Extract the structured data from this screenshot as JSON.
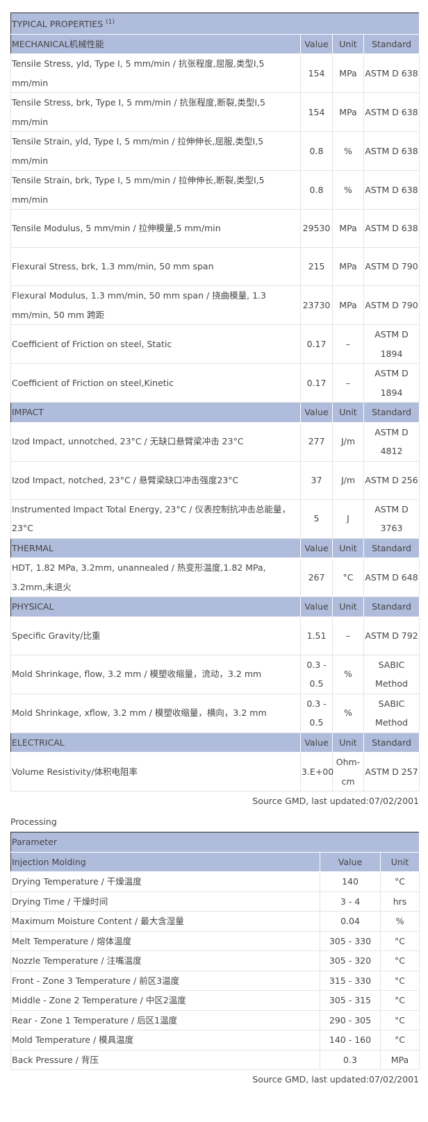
{
  "properties": {
    "title": "TYPICAL PROPERTIES",
    "title_note": "(1)",
    "col_value": "Value",
    "col_unit": "Unit",
    "col_standard": "Standard",
    "sections": [
      {
        "name": "MECHANICAL机械性能",
        "rows": [
          {
            "p": "Tensile Stress, yld, Type I, 5 mm/min / 抗张程度,屈服,类型I,5 mm/min",
            "v": "154",
            "u": "MPa",
            "s": "ASTM D 638"
          },
          {
            "p": "Tensile Stress, brk, Type I, 5 mm/min / 抗张程度,断裂,类型I,5 mm/min",
            "v": "154",
            "u": "MPa",
            "s": "ASTM D 638"
          },
          {
            "p": "Tensile Strain, yld, Type I, 5 mm/min / 拉伸伸长,屈服,类型I,5 mm/min",
            "v": "0.8",
            "u": "%",
            "s": "ASTM D 638"
          },
          {
            "p": "Tensile Strain, brk, Type I, 5 mm/min / 拉伸伸长,断裂,类型I,5 mm/min",
            "v": "0.8",
            "u": "%",
            "s": "ASTM D 638"
          },
          {
            "p": "Tensile Modulus, 5 mm/min / 拉伸模量,5 mm/min",
            "v": "29530",
            "u": "MPa",
            "s": "ASTM D 638"
          },
          {
            "p": "Flexural Stress, brk, 1.3 mm/min, 50 mm span",
            "v": "215",
            "u": "MPa",
            "s": "ASTM D 790"
          },
          {
            "p": "Flexural Modulus, 1.3 mm/min, 50 mm span / 挠曲模量, 1.3 mm/min, 50 mm 跨距",
            "v": "23730",
            "u": "MPa",
            "s": "ASTM D 790"
          },
          {
            "p": "Coefficient of Friction on steel, Static",
            "v": "0.17",
            "u": "–",
            "s": "ASTM D 1894"
          },
          {
            "p": "Coefficient of Friction on steel,Kinetic",
            "v": "0.17",
            "u": "–",
            "s": "ASTM D 1894"
          }
        ]
      },
      {
        "name": "IMPACT",
        "rows": [
          {
            "p": "Izod Impact, unnotched, 23°C / 无缺口悬臂梁冲击 23°C",
            "v": "277",
            "u": "J/m",
            "s": "ASTM D 4812"
          },
          {
            "p": "Izod Impact, notched, 23°C / 悬臂梁缺口冲击强度23°C",
            "v": "37",
            "u": "J/m",
            "s": "ASTM D 256"
          },
          {
            "p": "Instrumented Impact Total Energy, 23°C / 仪表控制抗冲击总能量，23°C",
            "v": "5",
            "u": "J",
            "s": "ASTM D 3763"
          }
        ]
      },
      {
        "name": "THERMAL",
        "rows": [
          {
            "p": "HDT, 1.82 MPa, 3.2mm, unannealed / 热变形温度,1.82 MPa, 3.2mm,未退火",
            "v": "267",
            "u": "°C",
            "s": "ASTM D 648"
          }
        ]
      },
      {
        "name": "PHYSICAL",
        "rows": [
          {
            "p": "Specific Gravity/比重",
            "v": "1.51",
            "u": "–",
            "s": "ASTM D 792"
          },
          {
            "p": "Mold Shrinkage, flow, 3.2 mm / 模塑收缩量，流动，3.2 mm",
            "v": "0.3 - 0.5",
            "u": "%",
            "s": "SABIC Method"
          },
          {
            "p": "Mold Shrinkage, xflow, 3.2 mm / 模塑收缩量，横向，3.2 mm",
            "v": "0.3 - 0.5",
            "u": "%",
            "s": "SABIC Method"
          }
        ]
      },
      {
        "name": "ELECTRICAL",
        "rows": [
          {
            "p": "Volume Resistivity/体积电阻率",
            "v": "3.E+00",
            "u": "Ohm-cm",
            "s": "ASTM D 257"
          }
        ]
      }
    ],
    "source": "Source GMD, last updated:07/02/2001"
  },
  "processing": {
    "label": "Processing",
    "title": "Parameter",
    "section": "Injection Molding",
    "col_value": "Value",
    "col_unit": "Unit",
    "rows": [
      {
        "p": "Drying Temperature / 干燥温度",
        "v": "140",
        "u": "°C"
      },
      {
        "p": "Drying Time / 干燥时间",
        "v": "3 - 4",
        "u": "hrs"
      },
      {
        "p": "Maximum Moisture Content / 最大含湿量",
        "v": "0.04",
        "u": "%"
      },
      {
        "p": "Melt Temperature / 熔体温度",
        "v": "305 - 330",
        "u": "°C"
      },
      {
        "p": "Nozzle Temperature / 注嘴温度",
        "v": "305 - 320",
        "u": "°C"
      },
      {
        "p": "Front - Zone 3 Temperature / 前区3温度",
        "v": "315 - 330",
        "u": "°C"
      },
      {
        "p": "Middle - Zone 2 Temperature / 中区2温度",
        "v": "305 - 315",
        "u": "°C"
      },
      {
        "p": "Rear - Zone 1 Temperature / 后区1温度",
        "v": "290 - 305",
        "u": "°C"
      },
      {
        "p": "Mold Temperature / 模具温度",
        "v": "140 - 160",
        "u": "°C"
      },
      {
        "p": "Back Pressure / 背压",
        "v": "0.3",
        "u": "MPa"
      }
    ],
    "source": "Source GMD, last updated:07/02/2001"
  }
}
